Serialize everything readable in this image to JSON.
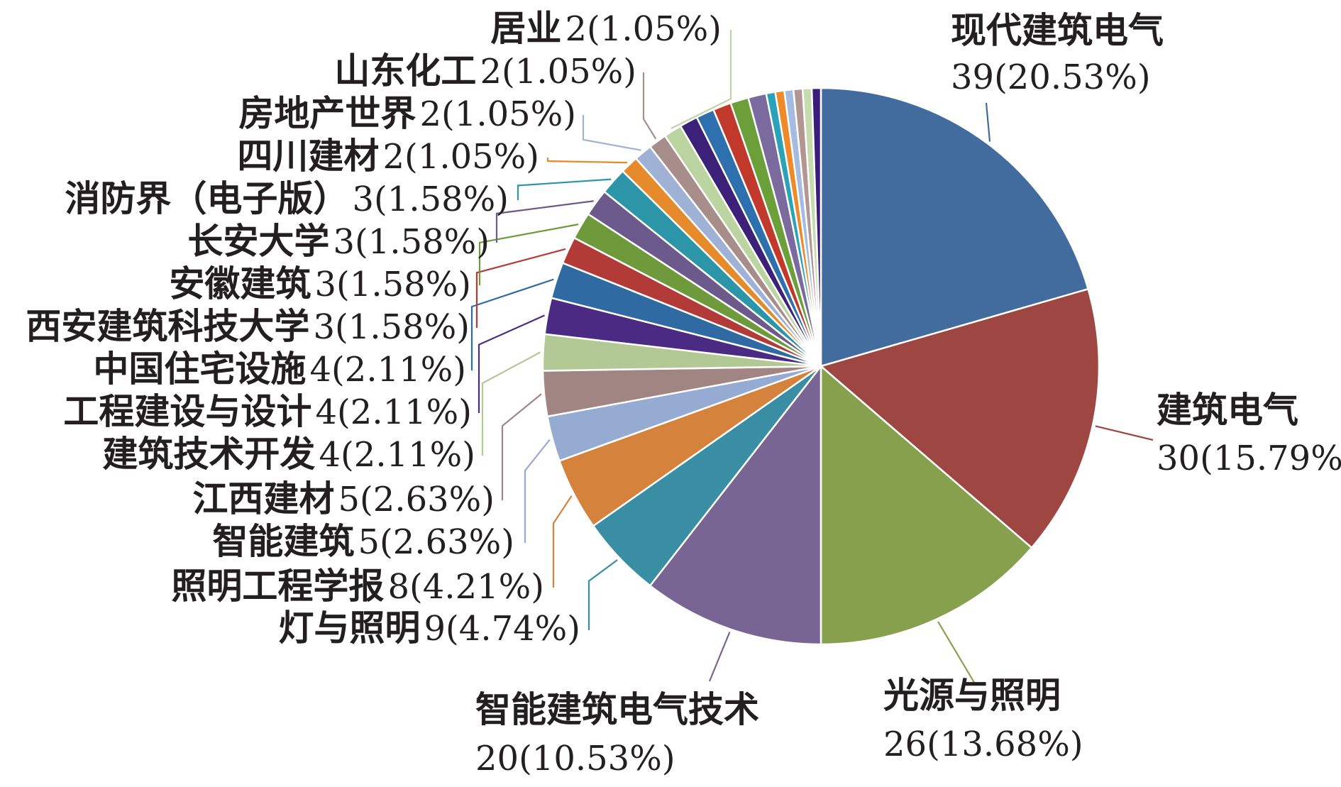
{
  "chart_data": {
    "type": "pie",
    "title": "",
    "legend": "none",
    "start_angle_deg": 0,
    "direction": "clockwise",
    "slices": [
      {
        "label": "现代建筑电气",
        "value": 39,
        "percent": "20.53%",
        "display": "39(20.53%)",
        "color": "#426b9e"
      },
      {
        "label": "建筑电气",
        "value": 30,
        "percent": "15.79%",
        "display": "30(15.79%)",
        "color": "#9e4742"
      },
      {
        "label": "光源与照明",
        "value": 26,
        "percent": "13.68%",
        "display": "26(13.68%)",
        "color": "#87a04e"
      },
      {
        "label": "智能建筑电气技术",
        "value": 20,
        "percent": "10.53%",
        "display": "20(10.53%)",
        "color": "#786594"
      },
      {
        "label": "灯与照明",
        "value": 9,
        "percent": "4.74%",
        "display": "9(4.74%)",
        "color": "#3a8ea3"
      },
      {
        "label": "照明工程学报",
        "value": 8,
        "percent": "4.21%",
        "display": "8(4.21%)",
        "color": "#d5823c"
      },
      {
        "label": "智能建筑",
        "value": 5,
        "percent": "2.63%",
        "display": "5(2.63%)",
        "color": "#96abd1"
      },
      {
        "label": "江西建材",
        "value": 5,
        "percent": "2.63%",
        "display": "5(2.63%)",
        "color": "#a18582"
      },
      {
        "label": "建筑技术开发",
        "value": 4,
        "percent": "2.11%",
        "display": "4(2.11%)",
        "color": "#b2c995"
      },
      {
        "label": "工程建设与设计",
        "value": 4,
        "percent": "2.11%",
        "display": "4(2.11%)",
        "color": "#4a2a82"
      },
      {
        "label": "中国住宅设施",
        "value": 4,
        "percent": "2.11%",
        "display": "4(2.11%)",
        "color": "#2f6aa3"
      },
      {
        "label": "西安建筑科技大学",
        "value": 3,
        "percent": "1.58%",
        "display": "3(1.58%)",
        "color": "#b23a37"
      },
      {
        "label": "安徽建筑",
        "value": 3,
        "percent": "1.58%",
        "display": "3(1.58%)",
        "color": "#6f9a3c"
      },
      {
        "label": "长安大学",
        "value": 3,
        "percent": "1.58%",
        "display": "3(1.58%)",
        "color": "#6c5a8d"
      },
      {
        "label": "消防界（电子版）",
        "value": 3,
        "percent": "1.58%",
        "display": "3(1.58%)",
        "color": "#2c96a8"
      },
      {
        "label": "四川建材",
        "value": 2,
        "percent": "1.05%",
        "display": "2(1.05%)",
        "color": "#e58b2c"
      },
      {
        "label": "房地产世界",
        "value": 2,
        "percent": "1.05%",
        "display": "2(1.05%)",
        "color": "#9fb2d6"
      },
      {
        "label": "山东化工",
        "value": 2,
        "percent": "1.05%",
        "display": "2(1.05%)",
        "color": "#a88e8b"
      },
      {
        "label": "居业",
        "value": 2,
        "percent": "1.05%",
        "display": "2(1.05%)",
        "color": "#bcd3a2"
      },
      {
        "label": "",
        "value": 2,
        "percent": "",
        "display": "",
        "color": "#3c2179"
      },
      {
        "label": "",
        "value": 2,
        "percent": "",
        "display": "",
        "color": "#2e6fae"
      },
      {
        "label": "",
        "value": 2,
        "percent": "",
        "display": "",
        "color": "#c0392b"
      },
      {
        "label": "",
        "value": 2,
        "percent": "",
        "display": "",
        "color": "#6b9f3a"
      },
      {
        "label": "",
        "value": 2,
        "percent": "",
        "display": "",
        "color": "#7a6a9e"
      },
      {
        "label": "",
        "value": 1,
        "percent": "",
        "display": "",
        "color": "#2aa3b8"
      },
      {
        "label": "",
        "value": 1,
        "percent": "",
        "display": "",
        "color": "#ef8a2a"
      },
      {
        "label": "",
        "value": 1,
        "percent": "",
        "display": "",
        "color": "#a6bbe0"
      },
      {
        "label": "",
        "value": 1,
        "percent": "",
        "display": "",
        "color": "#b39593"
      },
      {
        "label": "",
        "value": 1,
        "percent": "",
        "display": "",
        "color": "#c7dcae"
      },
      {
        "label": "",
        "value": 1,
        "percent": "",
        "display": "",
        "color": "#3a1c7c"
      }
    ]
  }
}
